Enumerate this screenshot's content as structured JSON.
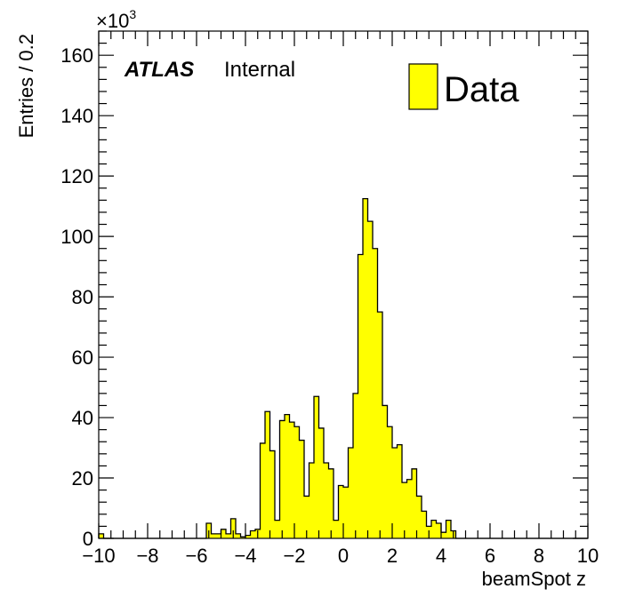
{
  "chart_data": {
    "type": "bar",
    "histogram": true,
    "xlabel": "beamSpot z",
    "ylabel": "Entries / 0.2",
    "y_multiplier": "×10",
    "y_multiplier_exp": "3",
    "xlim": [
      -10,
      10
    ],
    "ylim": [
      0,
      168
    ],
    "bin_width": 0.2,
    "x_tick_labels": [
      "−10",
      "−8",
      "−6",
      "−4",
      "−2",
      "0",
      "2",
      "4",
      "6",
      "8",
      "10"
    ],
    "y_tick_labels": [
      "0",
      "20",
      "40",
      "60",
      "80",
      "100",
      "120",
      "140",
      "160"
    ],
    "atlas_label": "ATLAS",
    "atlas_status": "Internal",
    "fill_color": "#ffff00",
    "grid": false,
    "legend_position": "top-right",
    "series": [
      {
        "name": "Data",
        "x": [
          -10.0,
          -9.8,
          -9.6,
          -9.4,
          -9.2,
          -9.0,
          -8.8,
          -8.6,
          -8.4,
          -8.2,
          -8.0,
          -7.8,
          -7.6,
          -7.4,
          -7.2,
          -7.0,
          -6.8,
          -6.6,
          -6.4,
          -6.2,
          -6.0,
          -5.8,
          -5.6,
          -5.4,
          -5.2,
          -5.0,
          -4.8,
          -4.6,
          -4.4,
          -4.2,
          -4.0,
          -3.8,
          -3.6,
          -3.4,
          -3.2,
          -3.0,
          -2.8,
          -2.6,
          -2.4,
          -2.2,
          -2.0,
          -1.8,
          -1.6,
          -1.4,
          -1.2,
          -1.0,
          -0.8,
          -0.6,
          -0.4,
          -0.2,
          0.0,
          0.2,
          0.4,
          0.6,
          0.8,
          1.0,
          1.2,
          1.4,
          1.6,
          1.8,
          2.0,
          2.2,
          2.4,
          2.6,
          2.8,
          3.0,
          3.2,
          3.4,
          3.6,
          3.8,
          4.0,
          4.2,
          4.4,
          4.6,
          4.8,
          5.0,
          5.2,
          5.4,
          5.6,
          5.8,
          6.0,
          6.2,
          6.4,
          6.6,
          6.8,
          7.0,
          7.2,
          7.4,
          7.6,
          7.8,
          8.0,
          8.2,
          8.4,
          8.6,
          8.8,
          9.0,
          9.2,
          9.4,
          9.6,
          9.8
        ],
        "values": [
          1.5,
          0,
          0,
          0,
          0,
          0,
          0,
          0,
          0,
          0,
          0,
          0,
          0,
          0,
          0,
          0,
          0,
          0,
          0,
          0,
          0,
          0,
          5,
          1.5,
          1.5,
          3,
          1.5,
          6.5,
          1.5,
          0.5,
          1,
          2.5,
          3,
          31.5,
          42,
          29,
          6,
          39,
          41,
          38.5,
          37,
          32.5,
          14,
          25,
          47,
          36.5,
          25,
          23,
          6,
          17.5,
          17,
          30,
          48,
          94,
          112.5,
          105,
          96,
          75,
          44,
          37,
          30,
          31,
          18.5,
          19.5,
          23,
          14,
          9,
          4,
          6,
          5,
          2,
          6,
          2.5,
          0,
          0,
          0,
          0,
          0,
          0,
          0,
          0,
          0,
          0,
          0,
          0,
          0,
          0,
          0,
          0,
          0,
          0,
          0,
          0,
          0,
          0,
          0,
          0,
          0,
          0,
          0
        ]
      }
    ]
  }
}
